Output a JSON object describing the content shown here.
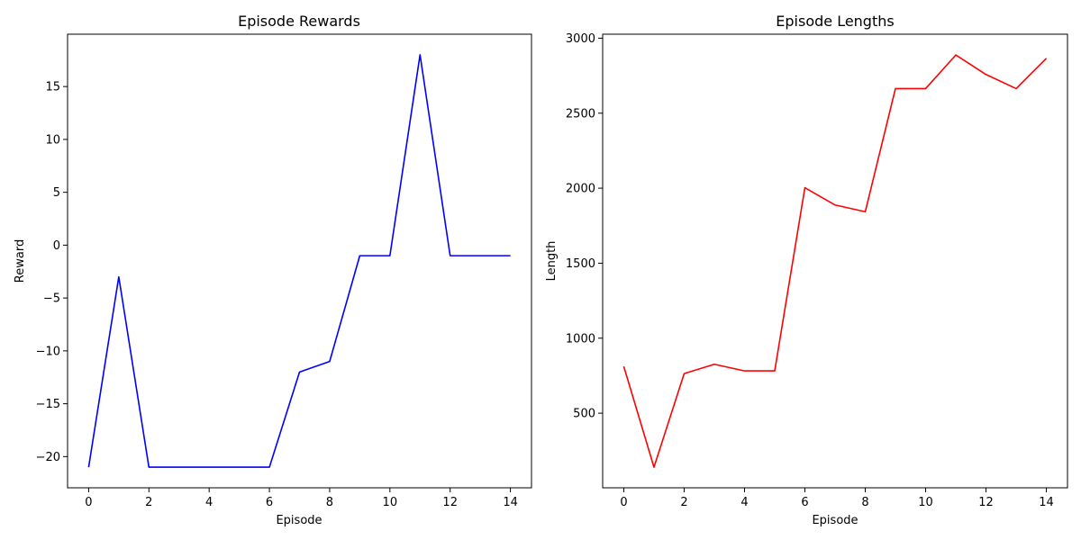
{
  "chart_data": [
    {
      "type": "line",
      "title": "Episode Rewards",
      "xlabel": "Episode",
      "ylabel": "Reward",
      "x": [
        0,
        1,
        2,
        3,
        4,
        5,
        6,
        7,
        8,
        9,
        10,
        11,
        12,
        13,
        14
      ],
      "series": [
        {
          "values": [
            -21,
            -3,
            -21,
            -21,
            -21,
            -21,
            -21,
            -12,
            -11,
            -1,
            -1,
            18,
            -1,
            -1,
            -1
          ],
          "color": "#0000ff"
        }
      ],
      "xlim": [
        -0.7,
        14.7
      ],
      "ylim": [
        -22.95,
        19.95
      ],
      "xticks": [
        0,
        2,
        4,
        6,
        8,
        10,
        12,
        14
      ],
      "xtick_labels": [
        "0",
        "2",
        "4",
        "6",
        "8",
        "10",
        "12",
        "14"
      ],
      "yticks": [
        -20,
        -15,
        -10,
        -5,
        0,
        5,
        10,
        15
      ],
      "ytick_labels": [
        "−20",
        "−15",
        "−10",
        "−5",
        "0",
        "5",
        "10",
        "15"
      ],
      "grid": false
    },
    {
      "type": "line",
      "title": "Episode Lengths",
      "xlabel": "Episode",
      "ylabel": "Length",
      "x": [
        0,
        1,
        2,
        3,
        4,
        5,
        6,
        7,
        8,
        9,
        10,
        11,
        12,
        13,
        14
      ],
      "series": [
        {
          "values": [
            812,
            140,
            764,
            826,
            782,
            782,
            2003,
            1888,
            1843,
            2664,
            2664,
            2888,
            2758,
            2664,
            2866
          ],
          "color": "#ff0000"
        }
      ],
      "xlim": [
        -0.7,
        14.7
      ],
      "ylim": [
        2.6,
        3026.6
      ],
      "xticks": [
        0,
        2,
        4,
        6,
        8,
        10,
        12,
        14
      ],
      "xtick_labels": [
        "0",
        "2",
        "4",
        "6",
        "8",
        "10",
        "12",
        "14"
      ],
      "yticks": [
        500,
        1000,
        1500,
        2000,
        2500,
        3000
      ],
      "ytick_labels": [
        "500",
        "1000",
        "1500",
        "2000",
        "2500",
        "3000"
      ],
      "grid": false
    }
  ]
}
